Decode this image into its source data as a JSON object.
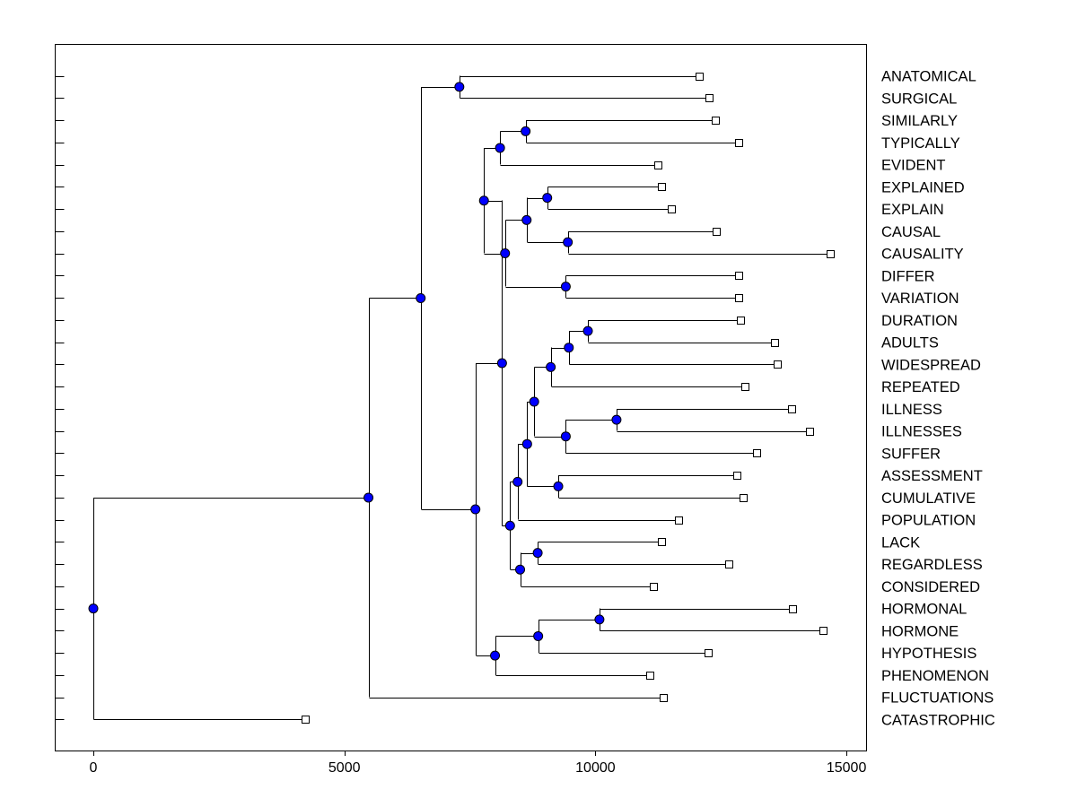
{
  "chart_data": {
    "type": "dendrogram",
    "orientation": "horizontal",
    "title": "",
    "xlabel": "",
    "ylabel": "",
    "xlim": [
      -760,
      15400
    ],
    "xticks": [
      0,
      5000,
      10000,
      15000
    ],
    "xtick_labels": [
      "0",
      "5000",
      "10000",
      "15000"
    ],
    "colors": {
      "node": "#0000ff",
      "leaf_marker": "#ffffff",
      "line": "#000000"
    },
    "leaves": [
      {
        "label": "ANATOMICAL",
        "height": 12060
      },
      {
        "label": "SURGICAL",
        "height": 12270
      },
      {
        "label": "SIMILARLY",
        "height": 12380
      },
      {
        "label": "TYPICALLY",
        "height": 12860
      },
      {
        "label": "EVIDENT",
        "height": 11240
      },
      {
        "label": "EXPLAINED",
        "height": 11310
      },
      {
        "label": "EXPLAIN",
        "height": 11510
      },
      {
        "label": "CAUSAL",
        "height": 12410
      },
      {
        "label": "CAUSALITY",
        "height": 14680
      },
      {
        "label": "DIFFER",
        "height": 12860
      },
      {
        "label": "VARIATION",
        "height": 12860
      },
      {
        "label": "DURATION",
        "height": 12880
      },
      {
        "label": "ADULTS",
        "height": 13560
      },
      {
        "label": "WIDESPREAD",
        "height": 13630
      },
      {
        "label": "REPEATED",
        "height": 12970
      },
      {
        "label": "ILLNESS",
        "height": 13900
      },
      {
        "label": "ILLNESSES",
        "height": 14260
      },
      {
        "label": "SUFFER",
        "height": 13210
      },
      {
        "label": "ASSESSMENT",
        "height": 12810
      },
      {
        "label": "CUMULATIVE",
        "height": 12950
      },
      {
        "label": "POPULATION",
        "height": 11650
      },
      {
        "label": "LACK",
        "height": 11320
      },
      {
        "label": "REGARDLESS",
        "height": 12650
      },
      {
        "label": "CONSIDERED",
        "height": 11150
      },
      {
        "label": "HORMONAL",
        "height": 13930
      },
      {
        "label": "HORMONE",
        "height": 14530
      },
      {
        "label": "HYPOTHESIS",
        "height": 12250
      },
      {
        "label": "PHENOMENON",
        "height": 11080
      },
      {
        "label": "FLUCTUATIONS",
        "height": 11350
      },
      {
        "label": "CATASTROPHIC",
        "height": 4220
      }
    ],
    "merges": [
      {
        "id": "N1",
        "height": 7290,
        "children": [
          "L0",
          "L1"
        ]
      },
      {
        "id": "N2",
        "height": 8610,
        "children": [
          "L2",
          "L3"
        ]
      },
      {
        "id": "N3",
        "height": 8100,
        "children": [
          "N2",
          "L4"
        ]
      },
      {
        "id": "N4",
        "height": 9040,
        "children": [
          "L5",
          "L6"
        ]
      },
      {
        "id": "N5",
        "height": 9450,
        "children": [
          "L7",
          "L8"
        ]
      },
      {
        "id": "N6",
        "height": 8630,
        "children": [
          "N4",
          "N5"
        ]
      },
      {
        "id": "N7",
        "height": 9410,
        "children": [
          "L9",
          "L10"
        ]
      },
      {
        "id": "N8",
        "height": 8200,
        "children": [
          "N6",
          "N7"
        ]
      },
      {
        "id": "N9",
        "height": 7780,
        "children": [
          "N3",
          "N8"
        ]
      },
      {
        "id": "N10",
        "height": 9850,
        "children": [
          "L11",
          "L12"
        ]
      },
      {
        "id": "N11",
        "height": 9470,
        "children": [
          "N10",
          "L13"
        ]
      },
      {
        "id": "N12",
        "height": 9110,
        "children": [
          "N11",
          "L14"
        ]
      },
      {
        "id": "N13",
        "height": 10420,
        "children": [
          "L15",
          "L16"
        ]
      },
      {
        "id": "N14",
        "height": 9410,
        "children": [
          "N13",
          "L17"
        ]
      },
      {
        "id": "N15",
        "height": 8780,
        "children": [
          "N12",
          "N14"
        ]
      },
      {
        "id": "N16",
        "height": 9260,
        "children": [
          "L18",
          "L19"
        ]
      },
      {
        "id": "N17",
        "height": 8640,
        "children": [
          "N15",
          "N16"
        ]
      },
      {
        "id": "N18",
        "height": 8450,
        "children": [
          "N17",
          "L20"
        ]
      },
      {
        "id": "N19",
        "height": 8850,
        "children": [
          "L21",
          "L22"
        ]
      },
      {
        "id": "N20",
        "height": 8500,
        "children": [
          "N19",
          "L23"
        ]
      },
      {
        "id": "N21",
        "height": 8300,
        "children": [
          "N18",
          "N20"
        ]
      },
      {
        "id": "N22",
        "height": 8140,
        "children": [
          "N9",
          "N21"
        ]
      },
      {
        "id": "N23",
        "height": 10080,
        "children": [
          "L24",
          "L25"
        ]
      },
      {
        "id": "N24",
        "height": 8860,
        "children": [
          "N23",
          "L26"
        ]
      },
      {
        "id": "N25",
        "height": 8000,
        "children": [
          "N24",
          "L27"
        ]
      },
      {
        "id": "N26",
        "height": 7610,
        "children": [
          "N22",
          "N25"
        ]
      },
      {
        "id": "N27",
        "height": 6520,
        "children": [
          "N1",
          "N26"
        ]
      },
      {
        "id": "N28",
        "height": 5480,
        "children": [
          "N27",
          "L28"
        ]
      },
      {
        "id": "N29",
        "height": 0,
        "children": [
          "N28",
          "L29"
        ]
      }
    ]
  }
}
